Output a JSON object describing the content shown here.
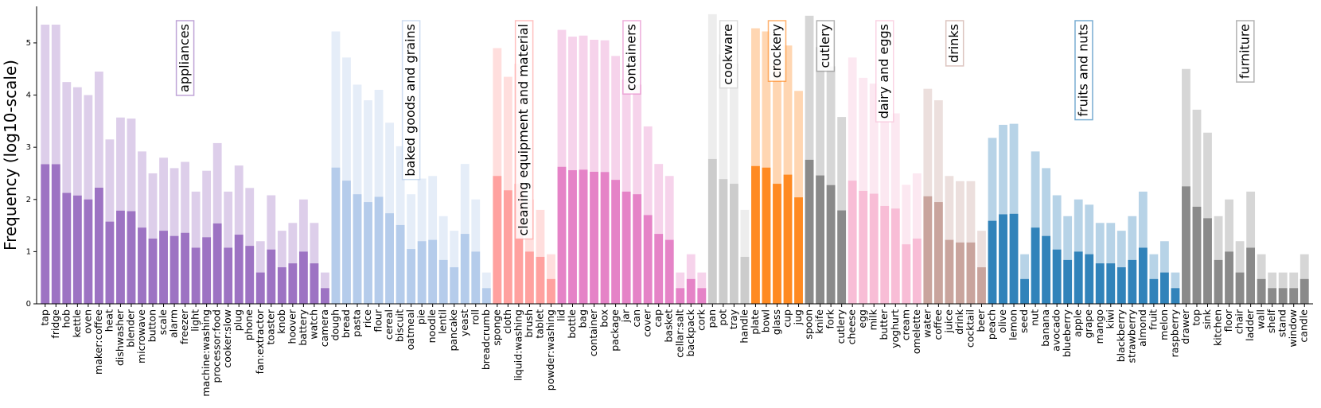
{
  "chart_data": {
    "type": "bar",
    "title": "",
    "xlabel": "",
    "ylabel": "Frequency (log10-scale)",
    "ylim": [
      0,
      5.7
    ],
    "yticks": [
      0,
      1,
      2,
      3,
      4,
      5
    ],
    "grid": false,
    "stacked_overlay": "lighter bar = total frequency, darker bar = half of total (log10)",
    "groups": [
      {
        "name": "appliances",
        "color": "#9467bd",
        "items": [
          {
            "label": "tap",
            "value": 5.35
          },
          {
            "label": "fridge",
            "value": 5.35
          },
          {
            "label": "hob",
            "value": 4.25
          },
          {
            "label": "kettle",
            "value": 4.15
          },
          {
            "label": "oven",
            "value": 4.0
          },
          {
            "label": "maker:coffee",
            "value": 4.45
          },
          {
            "label": "heat",
            "value": 3.15
          },
          {
            "label": "dishwasher",
            "value": 3.57
          },
          {
            "label": "blender",
            "value": 3.55
          },
          {
            "label": "microwave",
            "value": 2.92
          },
          {
            "label": "button",
            "value": 2.5
          },
          {
            "label": "scale",
            "value": 2.8
          },
          {
            "label": "alarm",
            "value": 2.6
          },
          {
            "label": "freezer",
            "value": 2.72
          },
          {
            "label": "light",
            "value": 2.15
          },
          {
            "label": "machine:washing",
            "value": 2.55
          },
          {
            "label": "processor:food",
            "value": 3.08
          },
          {
            "label": "cooker:slow",
            "value": 2.15
          },
          {
            "label": "plug",
            "value": 2.65
          },
          {
            "label": "phone",
            "value": 2.22
          },
          {
            "label": "fan:extractor",
            "value": 1.2
          },
          {
            "label": "toaster",
            "value": 2.08
          },
          {
            "label": "knob",
            "value": 1.4
          },
          {
            "label": "hoover",
            "value": 1.55
          },
          {
            "label": "battery",
            "value": 2.0
          },
          {
            "label": "watch",
            "value": 1.55
          },
          {
            "label": "camera",
            "value": 0.6
          }
        ]
      },
      {
        "name": "baked goods and grains",
        "color": "#aec7e8",
        "items": [
          {
            "label": "dough",
            "value": 5.22
          },
          {
            "label": "bread",
            "value": 4.72
          },
          {
            "label": "pasta",
            "value": 4.2
          },
          {
            "label": "rice",
            "value": 3.9
          },
          {
            "label": "flour",
            "value": 4.1
          },
          {
            "label": "cereal",
            "value": 3.47
          },
          {
            "label": "biscuit",
            "value": 3.02
          },
          {
            "label": "oatmeal",
            "value": 2.1
          },
          {
            "label": "pie",
            "value": 2.4
          },
          {
            "label": "noodle",
            "value": 2.45
          },
          {
            "label": "lentil",
            "value": 1.68
          },
          {
            "label": "pancake",
            "value": 1.4
          },
          {
            "label": "yeast",
            "value": 2.68
          },
          {
            "label": "roll",
            "value": 2.0
          },
          {
            "label": "breadcrumb",
            "value": 0.6
          }
        ]
      },
      {
        "name": "cleaning equipment and material",
        "color": "#ff9896",
        "items": [
          {
            "label": "sponge",
            "value": 4.9
          },
          {
            "label": "cloth",
            "value": 4.35
          },
          {
            "label": "liquid:washing",
            "value": 4.6
          },
          {
            "label": "brush",
            "value": 2.0
          },
          {
            "label": "tablet",
            "value": 1.8
          },
          {
            "label": "powder:washing",
            "value": 0.95
          }
        ]
      },
      {
        "name": "containers",
        "color": "#e377c2",
        "items": [
          {
            "label": "lid",
            "value": 5.25
          },
          {
            "label": "bottle",
            "value": 5.12
          },
          {
            "label": "bag",
            "value": 5.14
          },
          {
            "label": "container",
            "value": 5.06
          },
          {
            "label": "box",
            "value": 5.05
          },
          {
            "label": "package",
            "value": 4.75
          },
          {
            "label": "jar",
            "value": 4.3
          },
          {
            "label": "can",
            "value": 4.2
          },
          {
            "label": "cover",
            "value": 3.4
          },
          {
            "label": "cap",
            "value": 2.68
          },
          {
            "label": "basket",
            "value": 2.45
          },
          {
            "label": "cellar:salt",
            "value": 0.6
          },
          {
            "label": "backpack",
            "value": 0.95
          },
          {
            "label": "cork",
            "value": 0.6
          }
        ]
      },
      {
        "name": "cookware",
        "color": "#c7c7c7",
        "items": [
          {
            "label": "pan",
            "value": 5.55
          },
          {
            "label": "pot",
            "value": 4.78
          },
          {
            "label": "tray",
            "value": 4.6
          },
          {
            "label": "handle",
            "value": 1.8
          }
        ]
      },
      {
        "name": "crockery",
        "color": "#ff7f0e",
        "items": [
          {
            "label": "plate",
            "value": 5.28
          },
          {
            "label": "bowl",
            "value": 5.22
          },
          {
            "label": "glass",
            "value": 4.6
          },
          {
            "label": "cup",
            "value": 4.95
          },
          {
            "label": "jug",
            "value": 4.08
          }
        ]
      },
      {
        "name": "cutlery",
        "color": "#7f7f7f",
        "items": [
          {
            "label": "spoon",
            "value": 5.52
          },
          {
            "label": "knife",
            "value": 4.92
          },
          {
            "label": "fork",
            "value": 4.55
          },
          {
            "label": "cutlery",
            "value": 3.58
          }
        ]
      },
      {
        "name": "dairy and eggs",
        "color": "#f7b6d2",
        "items": [
          {
            "label": "cheese",
            "value": 4.72
          },
          {
            "label": "egg",
            "value": 4.33
          },
          {
            "label": "milk",
            "value": 4.22
          },
          {
            "label": "butter",
            "value": 3.75
          },
          {
            "label": "yoghurt",
            "value": 3.65
          },
          {
            "label": "cream",
            "value": 2.28
          },
          {
            "label": "omelette",
            "value": 2.5
          }
        ]
      },
      {
        "name": "drinks",
        "color": "#c49c94",
        "items": [
          {
            "label": "water",
            "value": 4.12
          },
          {
            "label": "coffee",
            "value": 3.9
          },
          {
            "label": "juice",
            "value": 2.45
          },
          {
            "label": "drink",
            "value": 2.35
          },
          {
            "label": "cocktail",
            "value": 2.35
          },
          {
            "label": "beer",
            "value": 1.4
          }
        ]
      },
      {
        "name": "fruits and nuts",
        "color": "#1f77b4",
        "items": [
          {
            "label": "peach",
            "value": 3.18
          },
          {
            "label": "olive",
            "value": 3.43
          },
          {
            "label": "lemon",
            "value": 3.45
          },
          {
            "label": "seed",
            "value": 0.95
          },
          {
            "label": "nut",
            "value": 2.92
          },
          {
            "label": "banana",
            "value": 2.6
          },
          {
            "label": "avocado",
            "value": 2.08
          },
          {
            "label": "blueberry",
            "value": 1.68
          },
          {
            "label": "apple",
            "value": 2.0
          },
          {
            "label": "grape",
            "value": 1.9
          },
          {
            "label": "mango",
            "value": 1.55
          },
          {
            "label": "kiwi",
            "value": 1.55
          },
          {
            "label": "blackberry",
            "value": 1.4
          },
          {
            "label": "strawberry",
            "value": 1.68
          },
          {
            "label": "almond",
            "value": 2.15
          },
          {
            "label": "fruit",
            "value": 0.95
          },
          {
            "label": "melon",
            "value": 1.2
          },
          {
            "label": "raspberry",
            "value": 0.6
          }
        ]
      },
      {
        "name": "furniture",
        "color": "#7f7f7f",
        "items": [
          {
            "label": "drawer",
            "value": 4.5
          },
          {
            "label": "top",
            "value": 3.72
          },
          {
            "label": "sink",
            "value": 3.28
          },
          {
            "label": "kitchen",
            "value": 1.68
          },
          {
            "label": "floor",
            "value": 2.0
          },
          {
            "label": "chair",
            "value": 1.2
          },
          {
            "label": "ladder",
            "value": 2.15
          },
          {
            "label": "wall",
            "value": 0.95
          },
          {
            "label": "shelf",
            "value": 0.6
          },
          {
            "label": "stand",
            "value": 0.6
          },
          {
            "label": "window",
            "value": 0.6
          },
          {
            "label": "candle",
            "value": 0.95
          }
        ]
      }
    ]
  }
}
